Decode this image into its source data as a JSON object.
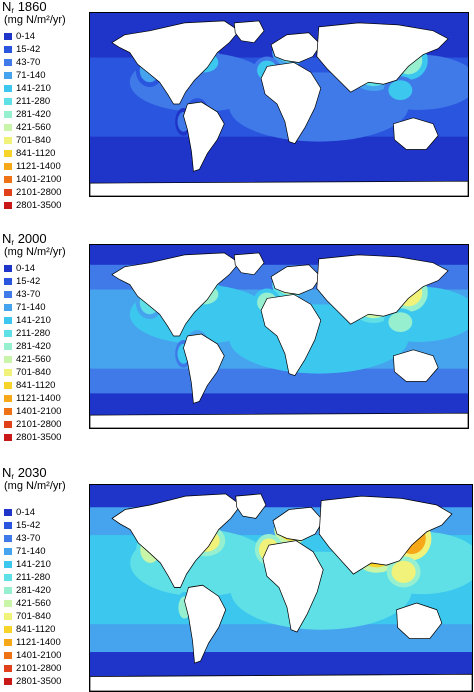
{
  "unit_label": "(mg N/m²/yr)",
  "legend_classes": [
    {
      "label": "0-14",
      "color": "#1f34c8"
    },
    {
      "label": "15-42",
      "color": "#2a55de"
    },
    {
      "label": "43-70",
      "color": "#3f7ae8"
    },
    {
      "label": "71-140",
      "color": "#46a3ee"
    },
    {
      "label": "141-210",
      "color": "#3cc8ee"
    },
    {
      "label": "211-280",
      "color": "#5fe0e6"
    },
    {
      "label": "281-420",
      "color": "#96f0cf"
    },
    {
      "label": "421-560",
      "color": "#c9f5a8"
    },
    {
      "label": "701-840",
      "color": "#f0f27a"
    },
    {
      "label": "841-1120",
      "color": "#f7d42a"
    },
    {
      "label": "1121-1400",
      "color": "#f6a818"
    },
    {
      "label": "1401-2100",
      "color": "#ef7214"
    },
    {
      "label": "2101-2800",
      "color": "#e0401a"
    },
    {
      "label": "2801-3500",
      "color": "#c81818"
    }
  ],
  "panels": [
    {
      "symbol": "N",
      "subscript": "r",
      "year": "1860",
      "intensity": 0
    },
    {
      "symbol": "N",
      "subscript": "r",
      "year": "2000",
      "intensity": 1
    },
    {
      "symbol": "N",
      "subscript": "r",
      "year": "2030",
      "intensity": 2
    }
  ]
}
